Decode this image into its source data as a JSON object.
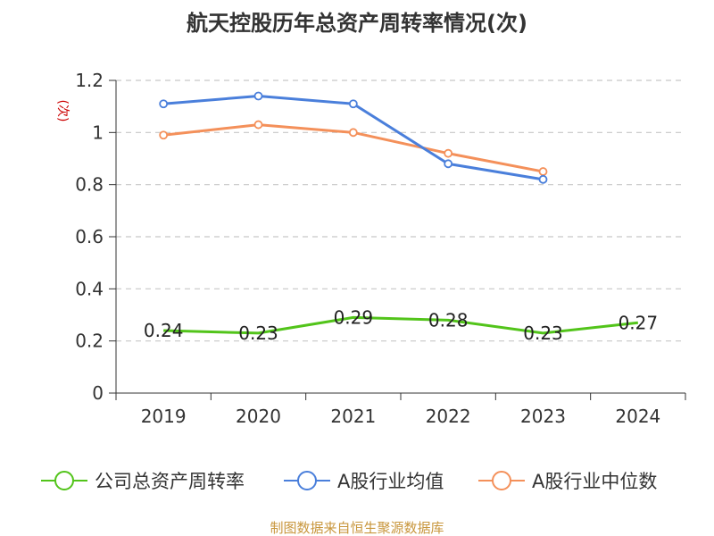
{
  "chart_data": {
    "type": "line",
    "title": "航天控股历年总资产周转率情况(次)",
    "ylabel": "(次)",
    "xlabel": "",
    "categories": [
      "2019",
      "2020",
      "2021",
      "2022",
      "2023",
      "2024"
    ],
    "ylim": [
      0,
      1.2
    ],
    "yticks": [
      "0",
      "0.2",
      "0.4",
      "0.6",
      "0.8",
      "1",
      "1.2"
    ],
    "grid": true,
    "legend_position": "bottom",
    "series": [
      {
        "name": "公司总资产周转率",
        "color": "#52c41a",
        "values": [
          0.24,
          0.23,
          0.29,
          0.28,
          0.23,
          0.27
        ],
        "labels": [
          "0.24",
          "0.23",
          "0.29",
          "0.28",
          "0.23",
          "0.27"
        ]
      },
      {
        "name": "A股行业均值",
        "color": "#4a7fdb",
        "values": [
          1.11,
          1.14,
          1.11,
          0.88,
          0.82,
          null
        ]
      },
      {
        "name": "A股行业中位数",
        "color": "#f4905a",
        "values": [
          0.99,
          1.03,
          1.0,
          0.92,
          0.85,
          null
        ]
      }
    ]
  },
  "source_note": "制图数据来自恒生聚源数据库"
}
